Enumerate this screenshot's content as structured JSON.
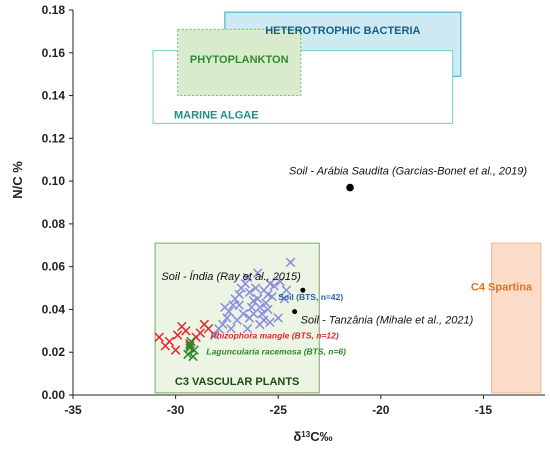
{
  "chart_data": {
    "type": "scatter",
    "xlabel_prefix": "δ",
    "xlabel_sup": "13",
    "xlabel_suffix": "C‰",
    "ylabel": "N/C %",
    "xlim": [
      -35,
      -12
    ],
    "ylim": [
      0,
      0.18
    ],
    "x_ticks": [
      -35,
      -30,
      -25,
      -20,
      -15
    ],
    "x_tick_labels": [
      "-35",
      "-30",
      "-25",
      "-20",
      "-15"
    ],
    "y_ticks": [
      0,
      0.02,
      0.04,
      0.06,
      0.08,
      0.1,
      0.12,
      0.14,
      0.16,
      0.18
    ],
    "y_tick_labels": [
      "0.00",
      "0.02",
      "0.04",
      "0.06",
      "0.08",
      "0.10",
      "0.12",
      "0.14",
      "0.16",
      "0.18"
    ],
    "grid": false,
    "regions": [
      {
        "label": "HETEROTROPHIC BACTERIA",
        "x": [
          -27.6,
          -16.1
        ],
        "y": [
          0.149,
          0.179
        ],
        "fill": "#cdeaf3",
        "stroke": "#3aa7c4",
        "text_color": "#1a5e86",
        "dashed": false
      },
      {
        "label": "MARINE ALGAE",
        "x": [
          -31.1,
          -16.5
        ],
        "y": [
          0.127,
          0.161
        ],
        "fill": "#ffffff",
        "stroke": "#6fd0cb",
        "text_color": "#1f8f86",
        "dashed": false
      },
      {
        "label": "PHYTOPLANKTON",
        "x": [
          -29.9,
          -23.9
        ],
        "y": [
          0.14,
          0.171
        ],
        "fill": "#d9ebcd",
        "stroke": "#7bb36a",
        "text_color": "#2f8c2c",
        "dashed": true
      },
      {
        "label": "C3 VASCULAR PLANTS",
        "x": [
          -31.0,
          -23.0
        ],
        "y": [
          0.001,
          0.071
        ],
        "fill": "#ecf4e4",
        "stroke": "#7aa862",
        "text_color": "#1d4d14",
        "dashed": false
      },
      {
        "label": "C4 Spartina",
        "x": [
          -14.6,
          -12.2
        ],
        "y": [
          0.001,
          0.071
        ],
        "fill": "#fcdcc8",
        "stroke": "#f0b591",
        "text_color": "#e0741f",
        "dashed": false
      }
    ],
    "series": [
      {
        "name": "Soil (BTS, n=42)",
        "marker": "x",
        "color": "#8b8be0",
        "label_color": "#2e62a8",
        "points": [
          [
            -28.1,
            0.028
          ],
          [
            -27.9,
            0.031
          ],
          [
            -27.7,
            0.033
          ],
          [
            -27.5,
            0.036
          ],
          [
            -27.4,
            0.039
          ],
          [
            -27.2,
            0.042
          ],
          [
            -27.1,
            0.045
          ],
          [
            -26.9,
            0.047
          ],
          [
            -26.8,
            0.05
          ],
          [
            -26.6,
            0.052
          ],
          [
            -26.5,
            0.055
          ],
          [
            -26.4,
            0.048
          ],
          [
            -26.3,
            0.041
          ],
          [
            -26.2,
            0.044
          ],
          [
            -26.1,
            0.05
          ],
          [
            -26.0,
            0.045
          ],
          [
            -25.9,
            0.041
          ],
          [
            -25.8,
            0.038
          ],
          [
            -25.7,
            0.035
          ],
          [
            -25.6,
            0.043
          ],
          [
            -25.5,
            0.047
          ],
          [
            -25.4,
            0.052
          ],
          [
            -25.9,
            0.033
          ],
          [
            -26.4,
            0.036
          ],
          [
            -26.7,
            0.038
          ],
          [
            -27.0,
            0.035
          ],
          [
            -27.3,
            0.031
          ],
          [
            -26.5,
            0.031
          ],
          [
            -26.9,
            0.042
          ],
          [
            -26.2,
            0.038
          ],
          [
            -25.5,
            0.04
          ],
          [
            -25.3,
            0.046
          ],
          [
            -25.2,
            0.051
          ],
          [
            -24.9,
            0.053
          ],
          [
            -24.4,
            0.062
          ],
          [
            -25.0,
            0.036
          ],
          [
            -24.7,
            0.045
          ],
          [
            -24.6,
            0.049
          ],
          [
            -27.6,
            0.041
          ],
          [
            -26.0,
            0.057
          ],
          [
            -25.7,
            0.049
          ],
          [
            -25.4,
            0.034
          ]
        ]
      },
      {
        "name": "Rhizophora mangle (BTS, n=12)",
        "marker": "x",
        "color": "#e8262e",
        "label_color": "#e8262e",
        "points": [
          [
            -30.8,
            0.027
          ],
          [
            -30.5,
            0.023
          ],
          [
            -30.3,
            0.025
          ],
          [
            -30.0,
            0.021
          ],
          [
            -29.9,
            0.028
          ],
          [
            -29.7,
            0.032
          ],
          [
            -29.5,
            0.03
          ],
          [
            -29.3,
            0.024
          ],
          [
            -29.0,
            0.027
          ],
          [
            -28.8,
            0.029
          ],
          [
            -28.6,
            0.033
          ],
          [
            -28.4,
            0.031
          ]
        ]
      },
      {
        "name": "Laguncularia racemosa (BTS, n=6)",
        "marker": "x",
        "color": "#2a8a2a",
        "label_color": "#2a8a2a",
        "points": [
          [
            -29.4,
            0.019
          ],
          [
            -29.3,
            0.022
          ],
          [
            -29.25,
            0.025
          ],
          [
            -29.15,
            0.018
          ],
          [
            -29.1,
            0.021
          ],
          [
            -29.3,
            0.023
          ]
        ]
      }
    ],
    "reference_points": [
      {
        "label": "Soil - Arábia Saudita (Garcias-Bonet et al., 2019)",
        "x": -21.5,
        "y": 0.097
      },
      {
        "label": "Soil - Índia (Ray et al., 2015)",
        "x": -23.8,
        "y": 0.049
      },
      {
        "label": "Soil - Tanzânia (Mihale et al., 2021)",
        "x": -24.2,
        "y": 0.039
      }
    ]
  }
}
